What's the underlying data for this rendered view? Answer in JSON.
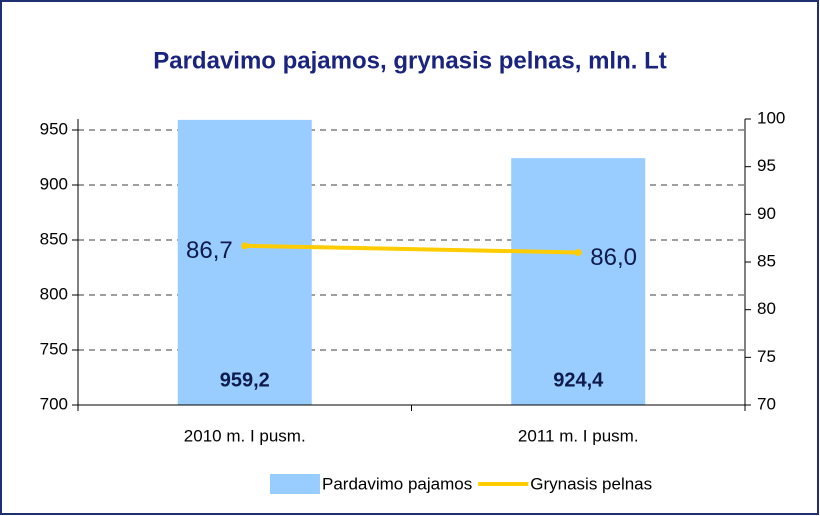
{
  "chart_data": {
    "type": "bar-line",
    "title": "Pardavimo pajamos, grynasis pelnas, mln. Lt",
    "categories": [
      "2010 m. I pusm.",
      "2011 m. I pusm."
    ],
    "series": [
      {
        "name": "Pardavimo pajamos",
        "type": "bar",
        "color": "#99ccff",
        "values": [
          959.2,
          924.4
        ],
        "value_labels": [
          "959,2",
          "924,4"
        ]
      },
      {
        "name": "Grynasis pelnas",
        "type": "line",
        "axis": "y2",
        "color": "#ffcc00",
        "values": [
          86.7,
          86.0
        ],
        "value_labels": [
          "86,7",
          "86,0"
        ]
      }
    ],
    "ylim": [
      700,
      960
    ],
    "yticks": [
      700,
      750,
      800,
      850,
      900,
      950
    ],
    "y2lim": [
      70,
      100
    ],
    "y2ticks": [
      70,
      75,
      80,
      85,
      90,
      95,
      100
    ],
    "grid": true,
    "legend": "bottom"
  }
}
